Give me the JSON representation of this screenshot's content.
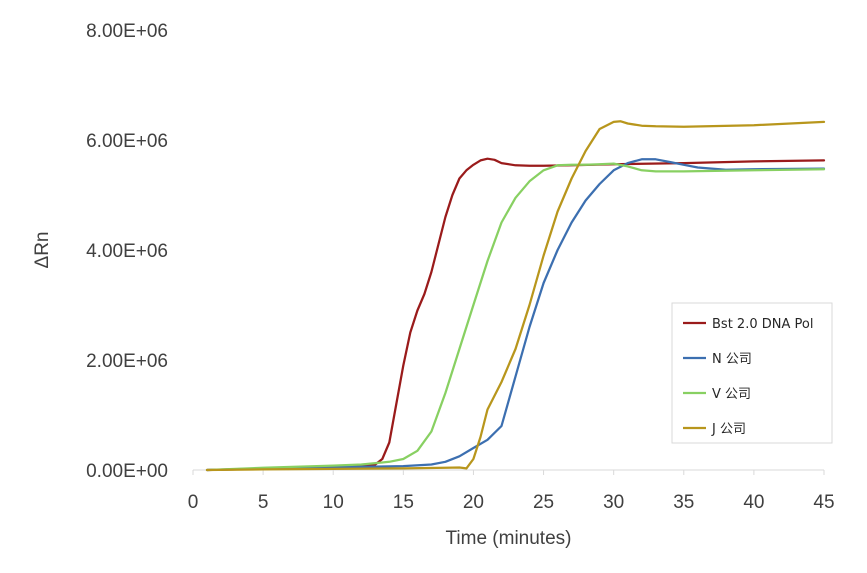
{
  "chart_data": {
    "type": "line",
    "xlabel": "Time (minutes)",
    "ylabel": "ΔRn",
    "xlim": [
      0,
      45
    ],
    "ylim": [
      0,
      8000000
    ],
    "x_ticks": [
      "0",
      "5",
      "10",
      "15",
      "20",
      "25",
      "30",
      "35",
      "40",
      "45"
    ],
    "y_ticks": [
      "0.00E+00",
      "2.00E+06",
      "4.00E+06",
      "6.00E+06",
      "8.00E+06"
    ],
    "grid": false,
    "legend_position": "right",
    "series": [
      {
        "name": "Bst 2.0 DNA Pol",
        "color": "#9a1b1b",
        "x": [
          1,
          5,
          10,
          12,
          13,
          13.5,
          14,
          14.5,
          15,
          15.5,
          16,
          16.5,
          17,
          17.5,
          18,
          18.5,
          19,
          19.5,
          20,
          20.5,
          21,
          21.5,
          22,
          23,
          24,
          25,
          27,
          30,
          35,
          40,
          45
        ],
        "y": [
          0,
          20000,
          50000,
          70000,
          100000,
          200000,
          500000,
          1200000,
          1900000,
          2500000,
          2900000,
          3200000,
          3600000,
          4100000,
          4600000,
          5000000,
          5300000,
          5450000,
          5550000,
          5630000,
          5660000,
          5640000,
          5580000,
          5540000,
          5530000,
          5530000,
          5540000,
          5560000,
          5580000,
          5610000,
          5630000
        ]
      },
      {
        "name": "N 公司",
        "color": "#3c6fb0",
        "x": [
          1,
          5,
          10,
          15,
          17,
          18,
          19,
          20,
          21,
          22,
          23,
          24,
          25,
          26,
          27,
          28,
          29,
          30,
          31,
          32,
          33,
          34,
          35,
          36,
          38,
          40,
          45
        ],
        "y": [
          0,
          30000,
          50000,
          70000,
          100000,
          150000,
          250000,
          400000,
          550000,
          800000,
          1700000,
          2600000,
          3400000,
          4000000,
          4500000,
          4900000,
          5200000,
          5450000,
          5580000,
          5650000,
          5650000,
          5600000,
          5550000,
          5500000,
          5460000,
          5470000,
          5480000
        ]
      },
      {
        "name": "V 公司",
        "color": "#88d062",
        "x": [
          1,
          5,
          10,
          12,
          14,
          15,
          16,
          17,
          18,
          19,
          20,
          21,
          22,
          23,
          24,
          25,
          26,
          27,
          28,
          29,
          30,
          31,
          32,
          33,
          35,
          40,
          45
        ],
        "y": [
          0,
          40000,
          80000,
          100000,
          150000,
          200000,
          350000,
          700000,
          1400000,
          2200000,
          3000000,
          3800000,
          4500000,
          4950000,
          5250000,
          5450000,
          5540000,
          5550000,
          5550000,
          5560000,
          5570000,
          5520000,
          5450000,
          5430000,
          5430000,
          5450000,
          5470000
        ]
      },
      {
        "name": "J 公司",
        "color": "#b8961c",
        "x": [
          1,
          5,
          10,
          15,
          18,
          19,
          19.5,
          20,
          20.5,
          21,
          22,
          23,
          24,
          25,
          26,
          27,
          28,
          29,
          30,
          30.5,
          31,
          32,
          33,
          35,
          40,
          45
        ],
        "y": [
          0,
          10000,
          20000,
          30000,
          40000,
          45000,
          30000,
          200000,
          600000,
          1100000,
          1600000,
          2200000,
          3000000,
          3900000,
          4700000,
          5300000,
          5800000,
          6200000,
          6330000,
          6340000,
          6300000,
          6260000,
          6250000,
          6240000,
          6270000,
          6330000
        ]
      }
    ]
  }
}
